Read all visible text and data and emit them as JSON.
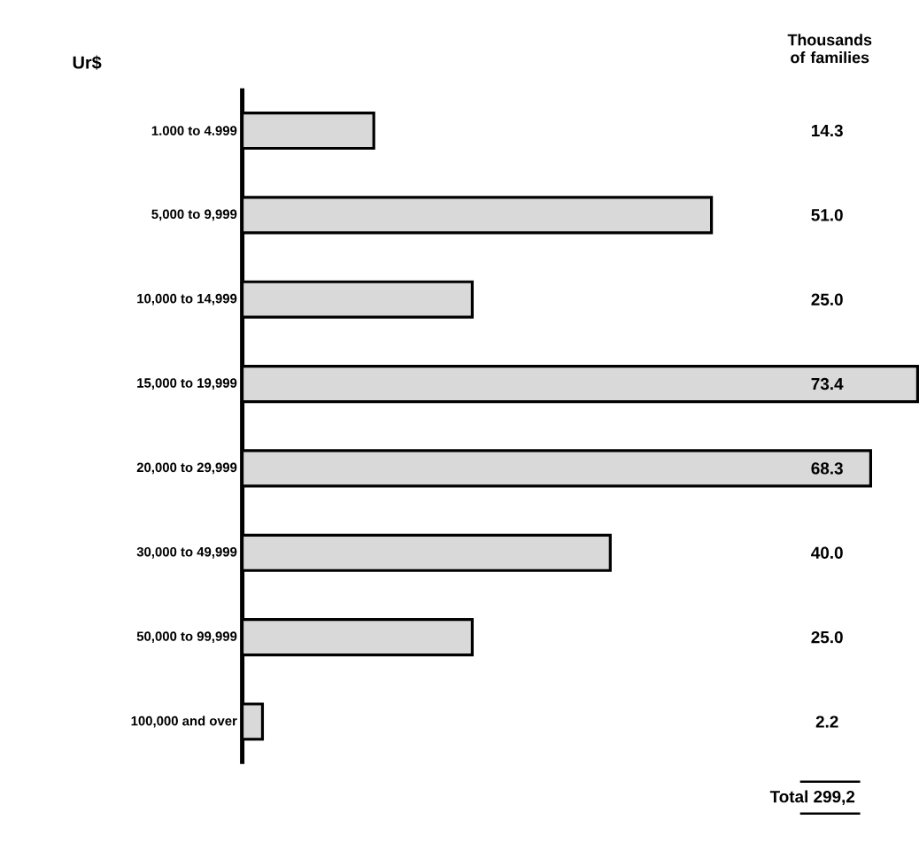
{
  "chart_data": {
    "type": "bar",
    "orientation": "horizontal",
    "ylabel": "Ur$",
    "xlabel": "Thousands of families",
    "categories": [
      "1.000 to 4.999",
      "5,000 to 9,999",
      "10,000 to 14,999",
      "15,000 to 19,999",
      "20,000 to 29,999",
      "30,000 to 49,999",
      "50,000 to 99,999",
      "100,000 and over"
    ],
    "values": [
      14.3,
      51.0,
      25.0,
      73.4,
      68.3,
      40.0,
      25.0,
      2.2
    ],
    "value_labels": [
      "14.3",
      "51.0",
      "25.0",
      "73.4",
      "68.3",
      "40.0",
      "25.0",
      "2.2"
    ],
    "color": "#d9d9d9",
    "annotations": [
      "Total 299,2"
    ]
  }
}
